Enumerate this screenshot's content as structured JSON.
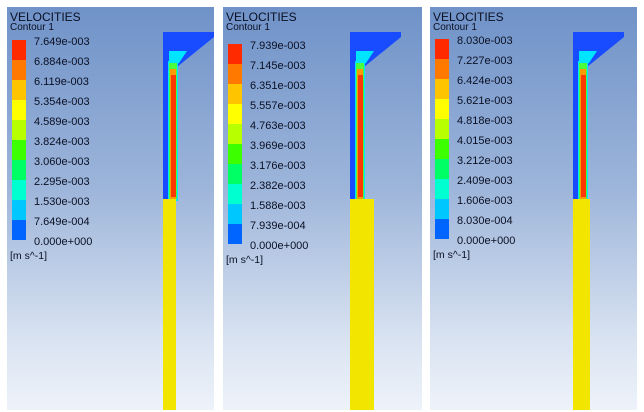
{
  "panels": [
    {
      "title": "VELOCITIES",
      "subtitle": "Contour 1",
      "unit": "[m s^-1]",
      "ticks": [
        "7.649e-003",
        "6.884e-003",
        "6.119e-003",
        "5.354e-003",
        "4.589e-003",
        "3.824e-003",
        "3.060e-003",
        "2.295e-003",
        "1.530e-003",
        "7.649e-004",
        "0.000e+000"
      ]
    },
    {
      "title": "VELOCITIES",
      "subtitle": "Contour 1",
      "unit": "[m s^-1]",
      "ticks": [
        "7.939e-003",
        "7.145e-003",
        "6.351e-003",
        "5.557e-003",
        "4.763e-003",
        "3.969e-003",
        "3.176e-003",
        "2.382e-003",
        "1.588e-003",
        "7.939e-004",
        "0.000e+000"
      ]
    },
    {
      "title": "VELOCITIES",
      "subtitle": "Contour 1",
      "unit": "[m s^-1]",
      "ticks": [
        "8.030e-003",
        "7.227e-003",
        "6.424e-003",
        "5.621e-003",
        "4.818e-003",
        "4.015e-003",
        "3.212e-003",
        "2.409e-003",
        "1.606e-003",
        "8.030e-004",
        "0.000e+000"
      ]
    }
  ],
  "legend_colors": [
    "#ff2a00",
    "#ff7800",
    "#ffc400",
    "#ffff00",
    "#b8ff00",
    "#3cff00",
    "#00ff64",
    "#00ffd0",
    "#00c8ff",
    "#0064ff"
  ],
  "field_colors": {
    "inlet_blue": "#1a4cff",
    "cyan": "#00e5ff",
    "green": "#4cff3c",
    "core_red": "#ff3a00",
    "orange": "#ff9a00",
    "yellow": "#ffea00",
    "stem_yellow": "#f2e600"
  }
}
